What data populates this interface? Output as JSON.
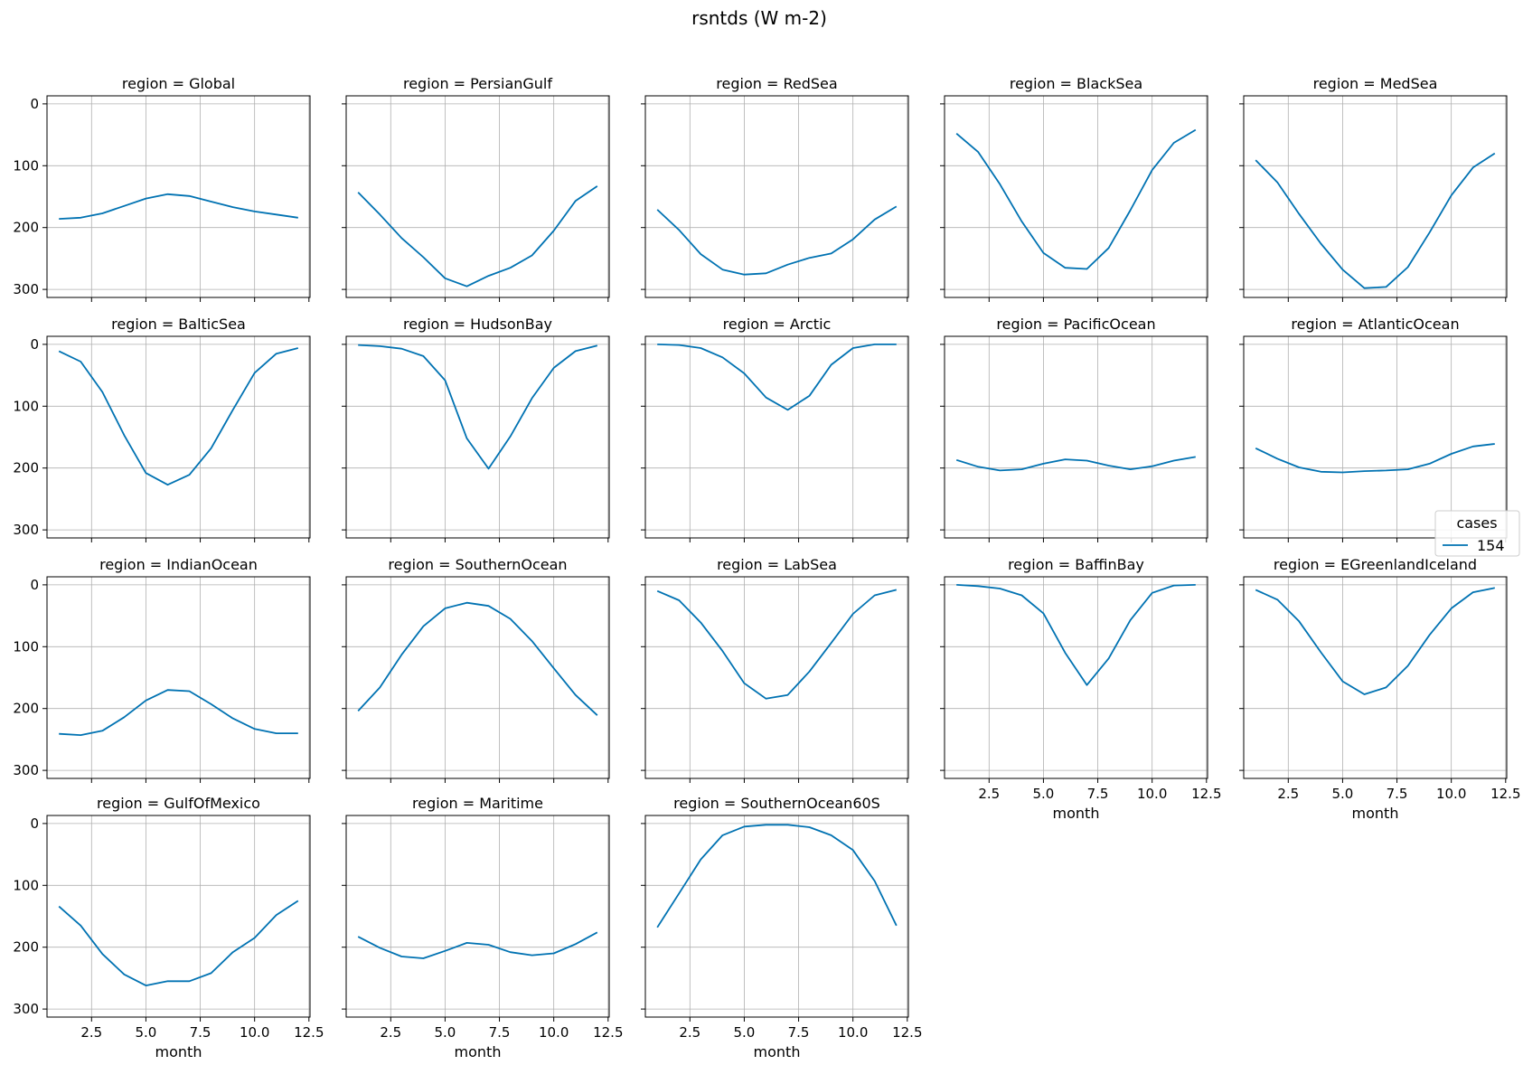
{
  "chart_data": {
    "type": "line",
    "title": "rsntds (W m-2)",
    "xlabel": "month",
    "ylabel": "",
    "x": [
      1,
      2,
      3,
      4,
      5,
      6,
      7,
      8,
      9,
      10,
      11,
      12
    ],
    "xlim": [
      0.45,
      12.55
    ],
    "xticks": [
      2.5,
      5.0,
      7.5,
      10.0,
      12.5
    ],
    "xtick_labels": [
      "2.5",
      "5.0",
      "7.5",
      "10.0",
      "12.5"
    ],
    "ylim": [
      313,
      -13
    ],
    "yticks": [
      0,
      100,
      200,
      300
    ],
    "ytick_labels": [
      "0",
      "100",
      "200",
      "300"
    ],
    "y_inverted": true,
    "grid": true,
    "line_color": "#0072b2",
    "legend": {
      "title": "cases",
      "entries": [
        "154"
      ],
      "placement": "center-right"
    },
    "panels": [
      {
        "title": "region = Global",
        "values": [
          186,
          184,
          177,
          165,
          153,
          146,
          149,
          158,
          167,
          174,
          179,
          184
        ]
      },
      {
        "title": "region = PersianGulf",
        "values": [
          143,
          179,
          217,
          248,
          282,
          295,
          278,
          265,
          245,
          205,
          157,
          133
        ]
      },
      {
        "title": "region = RedSea",
        "values": [
          171,
          204,
          243,
          268,
          276,
          274,
          260,
          249,
          242,
          219,
          187,
          166
        ]
      },
      {
        "title": "region = BlackSea",
        "values": [
          48,
          78,
          130,
          190,
          241,
          265,
          267,
          233,
          172,
          107,
          63,
          42
        ]
      },
      {
        "title": "region = MedSea",
        "values": [
          91,
          127,
          178,
          226,
          268,
          298,
          296,
          264,
          208,
          148,
          103,
          80
        ]
      },
      {
        "title": "region = BalticSea",
        "values": [
          11,
          28,
          77,
          147,
          208,
          227,
          211,
          168,
          106,
          46,
          15,
          6
        ]
      },
      {
        "title": "region = HudsonBay",
        "values": [
          1,
          3,
          7,
          19,
          58,
          152,
          201,
          149,
          87,
          38,
          11,
          2
        ]
      },
      {
        "title": "region = Arctic",
        "values": [
          0,
          1,
          6,
          21,
          47,
          86,
          106,
          83,
          33,
          6,
          0,
          0
        ]
      },
      {
        "title": "region = PacificOcean",
        "values": [
          187,
          198,
          204,
          202,
          193,
          186,
          188,
          196,
          202,
          197,
          188,
          182
        ]
      },
      {
        "title": "region = AtlanticOcean",
        "values": [
          168,
          185,
          199,
          206,
          207,
          205,
          204,
          202,
          193,
          177,
          165,
          161
        ]
      },
      {
        "title": "region = IndianOcean",
        "values": [
          241,
          243,
          236,
          214,
          187,
          170,
          172,
          193,
          216,
          233,
          240,
          240
        ]
      },
      {
        "title": "region = SouthernOcean",
        "values": [
          204,
          166,
          113,
          67,
          38,
          29,
          34,
          55,
          91,
          135,
          178,
          211
        ]
      },
      {
        "title": "region = LabSea",
        "values": [
          10,
          25,
          61,
          107,
          159,
          184,
          178,
          140,
          94,
          47,
          17,
          8
        ]
      },
      {
        "title": "region = BaffinBay",
        "values": [
          0,
          2,
          6,
          17,
          46,
          110,
          162,
          119,
          57,
          13,
          1,
          0
        ]
      },
      {
        "title": "region = EGreenlandIceland",
        "values": [
          8,
          24,
          59,
          109,
          156,
          177,
          166,
          131,
          81,
          38,
          12,
          5
        ]
      },
      {
        "title": "region = GulfOfMexico",
        "values": [
          134,
          165,
          211,
          244,
          262,
          255,
          255,
          242,
          208,
          185,
          148,
          125
        ]
      },
      {
        "title": "region = Maritime",
        "values": [
          183,
          201,
          215,
          218,
          206,
          193,
          196,
          208,
          213,
          210,
          195,
          176
        ]
      },
      {
        "title": "region = SouthernOcean60S",
        "values": [
          168,
          113,
          58,
          19,
          5,
          2,
          2,
          6,
          19,
          43,
          93,
          165
        ]
      }
    ]
  }
}
